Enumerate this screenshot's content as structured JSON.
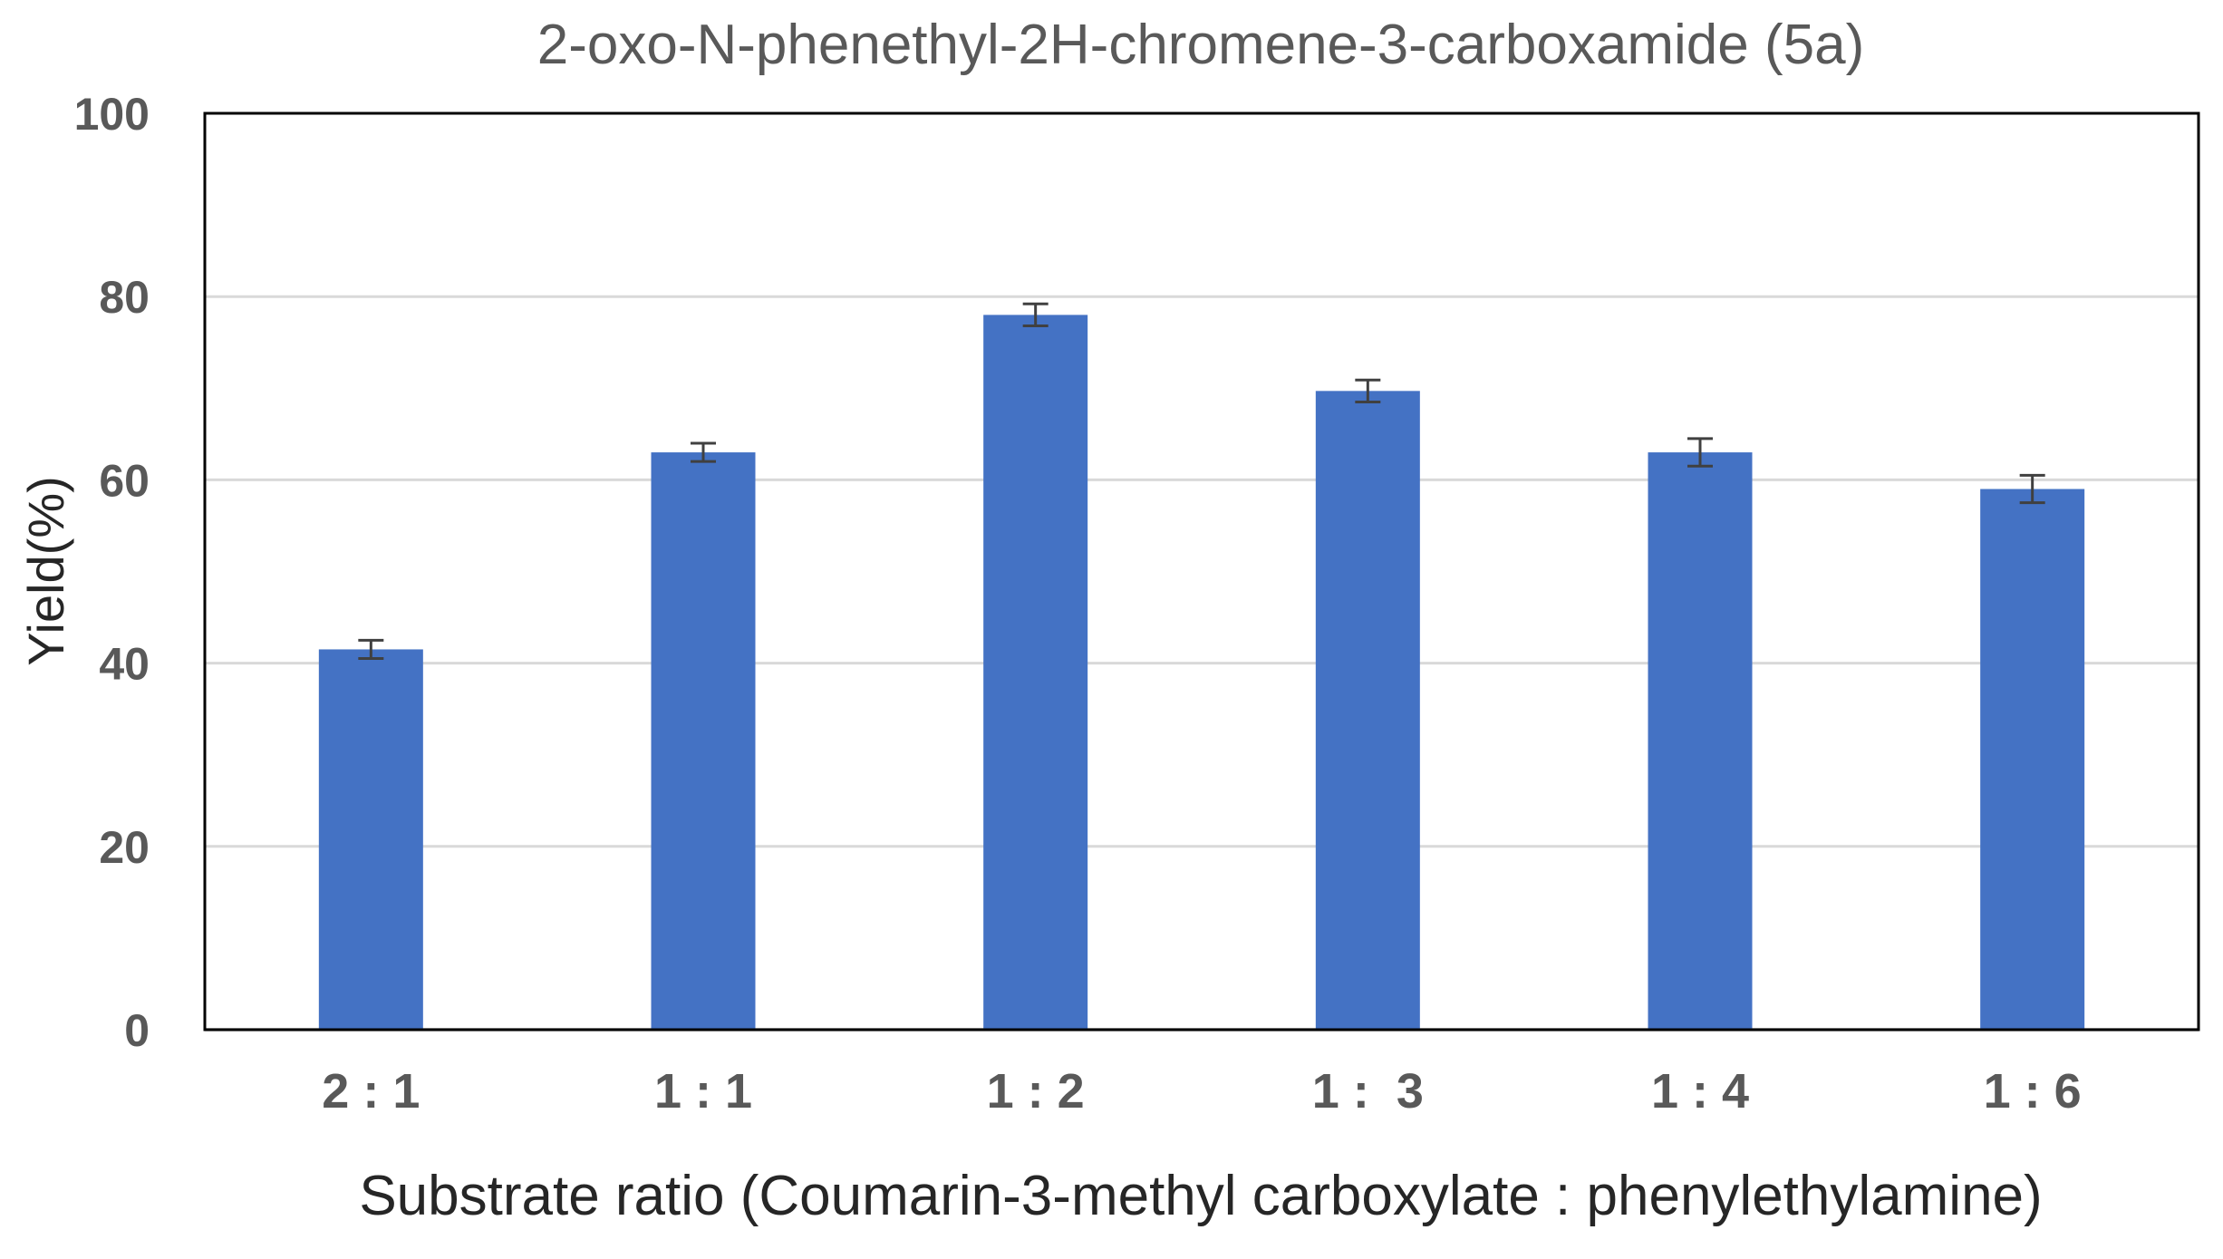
{
  "chart_data": {
    "type": "bar",
    "title": "2-oxo-N-phenethyl-2H-chromene-3-carboxamide (5a)",
    "xlabel": "Substrate ratio (Coumarin-3-methyl carboxylate : phenylethylamine)",
    "ylabel": "Yield(%)",
    "ylim": [
      0,
      100
    ],
    "yticks": [
      "0",
      "20",
      "40",
      "60",
      "80",
      "100"
    ],
    "categories": [
      "2 : 1",
      "1 : 1",
      "1 : 2",
      "1 :  3",
      "1 : 4",
      "1 : 6"
    ],
    "values": [
      41.5,
      63,
      78,
      69.7,
      63,
      59
    ],
    "errors": [
      1.0,
      1.0,
      1.2,
      1.2,
      1.5,
      1.5
    ],
    "bar_color": "#4472C4",
    "grid": true,
    "legend": "none"
  }
}
